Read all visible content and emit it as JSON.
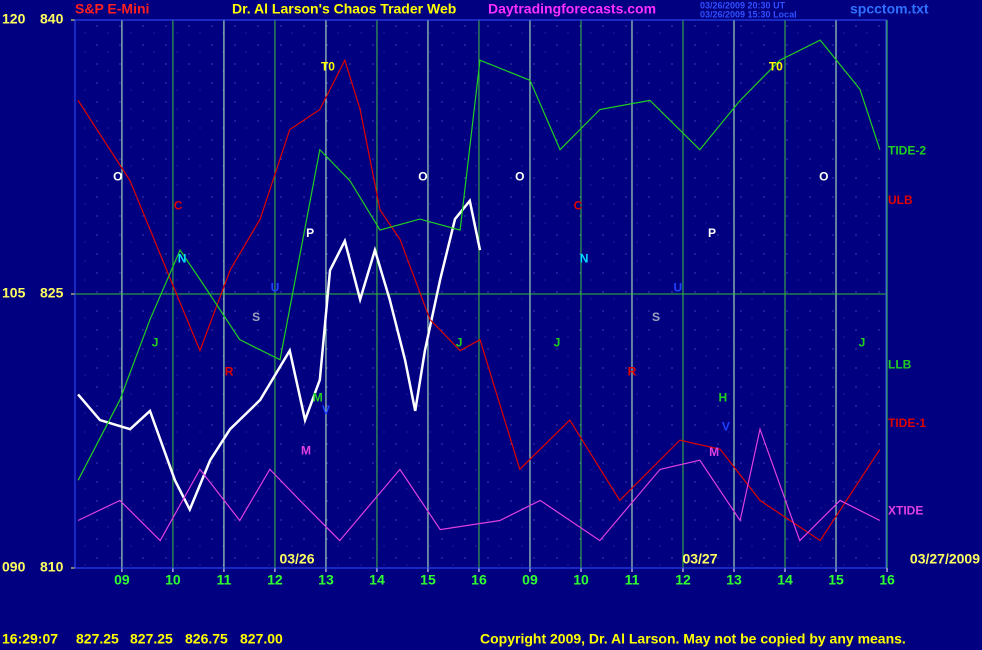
{
  "chart_data": {
    "type": "line",
    "title": "Dr. Al Larson's Chaos Trader Web",
    "symbol": "S&P E-Mini",
    "website": "Daytradingforecasts.com",
    "file": "spcctom.txt",
    "timestamps": [
      "03/26/2009 20:30 UT",
      "03/26/2009 15:30 Local"
    ],
    "xlim": [
      0.08,
      15.98
    ],
    "xticks": [
      {
        "value": 1,
        "label": "09"
      },
      {
        "value": 2,
        "label": "10"
      },
      {
        "value": 3,
        "label": "11"
      },
      {
        "value": 4,
        "label": "12"
      },
      {
        "value": 5,
        "label": "13"
      },
      {
        "value": 6,
        "label": "14"
      },
      {
        "value": 7,
        "label": "15"
      },
      {
        "value": 8,
        "label": "16"
      },
      {
        "value": 9,
        "label": "09"
      },
      {
        "value": 10,
        "label": "10"
      },
      {
        "value": 11,
        "label": "11"
      },
      {
        "value": 12,
        "label": "12"
      },
      {
        "value": 13,
        "label": "13"
      },
      {
        "value": 14,
        "label": "14"
      },
      {
        "value": 15,
        "label": "15"
      },
      {
        "value": 16,
        "label": "16"
      }
    ],
    "ylim": [
      810,
      840
    ],
    "yticks": [
      810,
      825,
      840
    ],
    "y2lim": [
      90,
      120
    ],
    "y2ticks": [
      {
        "value": 90,
        "label": "090"
      },
      105,
      120
    ],
    "grid": true,
    "date_labels": [
      "03/26",
      "03/27",
      "03/27/2009"
    ],
    "series": [
      {
        "name": "Price",
        "color": "#ffffff",
        "x": [
          0.14,
          0.57,
          1.16,
          1.55,
          2.04,
          2.33,
          2.73,
          3.12,
          3.71,
          4.29,
          4.59,
          4.88,
          5.08,
          5.37,
          5.67,
          5.96,
          6.25,
          6.55,
          6.75,
          6.94,
          7.24,
          7.53,
          7.82,
          8.02
        ],
        "values": [
          819.5,
          818.1,
          817.6,
          818.6,
          814.8,
          813.2,
          815.9,
          817.6,
          819.2,
          821.9,
          818.1,
          820.3,
          826.3,
          827.9,
          824.7,
          827.4,
          824.7,
          821.4,
          818.6,
          821.9,
          825.8,
          829.1,
          830.1,
          827.4
        ]
      },
      {
        "name": "ULB",
        "color": "#e00000",
        "x": [
          0.14,
          1.16,
          2.04,
          2.53,
          3.12,
          3.71,
          4.29,
          4.88,
          5.37,
          5.67,
          6.06,
          6.45,
          7.04,
          7.63,
          8.02,
          8.8,
          9.78,
          10.76,
          11.94,
          12.73,
          13.51,
          14.69,
          15.86
        ],
        "values": [
          835.6,
          831.2,
          825.2,
          821.9,
          826.3,
          829.1,
          834.0,
          835.1,
          837.8,
          835.1,
          829.6,
          828.0,
          823.6,
          821.9,
          822.5,
          815.4,
          818.1,
          813.7,
          817.0,
          816.5,
          813.7,
          811.5,
          816.5
        ]
      },
      {
        "name": "TIDE-2",
        "color": "#20d020",
        "x": [
          0.14,
          0.96,
          1.55,
          2.14,
          2.53,
          3.31,
          4.1,
          4.88,
          5.47,
          6.06,
          6.84,
          7.63,
          8.02,
          9.0,
          9.59,
          10.37,
          11.35,
          12.33,
          13.12,
          13.9,
          14.69,
          15.47,
          15.86
        ],
        "values": [
          814.8,
          819.2,
          823.6,
          827.4,
          825.8,
          822.5,
          821.4,
          832.9,
          831.2,
          828.5,
          829.1,
          828.5,
          837.8,
          836.7,
          832.9,
          835.1,
          835.6,
          832.9,
          835.6,
          837.8,
          838.9,
          836.2,
          832.9
        ]
      },
      {
        "name": "XTIDE",
        "color": "#e040e0",
        "x": [
          0.14,
          0.96,
          1.75,
          2.53,
          3.31,
          3.9,
          4.49,
          5.27,
          6.45,
          7.24,
          8.41,
          9.2,
          10.37,
          11.55,
          12.33,
          13.12,
          13.51,
          14.29,
          15.08,
          15.86
        ],
        "values": [
          812.6,
          813.7,
          811.5,
          815.4,
          812.6,
          815.4,
          813.7,
          811.5,
          815.4,
          812.1,
          812.6,
          813.7,
          811.5,
          815.4,
          815.9,
          812.6,
          817.6,
          811.5,
          813.7,
          812.6
        ]
      }
    ],
    "annotations": [
      {
        "text": "O",
        "x": 0.92,
        "y": 831.4,
        "color": "#ffffff"
      },
      {
        "text": "C",
        "x": 2.1,
        "y": 829.8,
        "color": "#e00000"
      },
      {
        "text": "N",
        "x": 2.18,
        "y": 826.9,
        "color": "#00e0ff"
      },
      {
        "text": "U",
        "x": 4.0,
        "y": 825.3,
        "color": "#2040ff"
      },
      {
        "text": "S",
        "x": 3.63,
        "y": 823.7,
        "color": "#a0a0c0"
      },
      {
        "text": "R",
        "x": 3.1,
        "y": 820.7,
        "color": "#e00000"
      },
      {
        "text": "T0",
        "x": 5.04,
        "y": 837.4,
        "color": "#ffff00"
      },
      {
        "text": "P",
        "x": 4.69,
        "y": 828.3,
        "color": "#ffffff"
      },
      {
        "text": "J",
        "x": 1.65,
        "y": 822.3,
        "color": "#20d020"
      },
      {
        "text": "M",
        "x": 4.84,
        "y": 819.3,
        "color": "#20d020"
      },
      {
        "text": "V",
        "x": 5.0,
        "y": 818.6,
        "color": "#2040ff"
      },
      {
        "text": "M",
        "x": 4.61,
        "y": 816.4,
        "color": "#e040e0"
      },
      {
        "text": "O",
        "x": 6.9,
        "y": 831.4,
        "color": "#ffffff"
      },
      {
        "text": "J",
        "x": 7.61,
        "y": 822.3,
        "color": "#20d020"
      },
      {
        "text": "O",
        "x": 8.8,
        "y": 831.4,
        "color": "#ffffff"
      },
      {
        "text": "C",
        "x": 9.94,
        "y": 829.8,
        "color": "#e00000"
      },
      {
        "text": "N",
        "x": 10.06,
        "y": 826.9,
        "color": "#00e0ff"
      },
      {
        "text": "J",
        "x": 9.53,
        "y": 822.3,
        "color": "#20d020"
      },
      {
        "text": "R",
        "x": 11.0,
        "y": 820.7,
        "color": "#e00000"
      },
      {
        "text": "S",
        "x": 11.47,
        "y": 823.7,
        "color": "#a0a0c0"
      },
      {
        "text": "U",
        "x": 11.9,
        "y": 825.3,
        "color": "#2040ff"
      },
      {
        "text": "P",
        "x": 12.57,
        "y": 828.3,
        "color": "#ffffff"
      },
      {
        "text": "H",
        "x": 12.78,
        "y": 819.3,
        "color": "#20d020"
      },
      {
        "text": "V",
        "x": 12.84,
        "y": 817.7,
        "color": "#2040ff"
      },
      {
        "text": "M",
        "x": 12.61,
        "y": 816.3,
        "color": "#e040e0"
      },
      {
        "text": "T0",
        "x": 13.82,
        "y": 837.4,
        "color": "#ffff00"
      },
      {
        "text": "O",
        "x": 14.76,
        "y": 831.4,
        "color": "#ffffff"
      },
      {
        "text": "J",
        "x": 15.51,
        "y": 822.3,
        "color": "#20d020"
      }
    ],
    "right_labels": [
      {
        "text": "TIDE-2",
        "y": 832.8,
        "color": "#20d020"
      },
      {
        "text": "ULB",
        "y": 830.1,
        "color": "#e00000"
      },
      {
        "text": "LLB",
        "y": 821.1,
        "color": "#20d020"
      },
      {
        "text": "TIDE-1",
        "y": 817.9,
        "color": "#e00000"
      },
      {
        "text": "XTIDE",
        "y": 813.1,
        "color": "#e040e0"
      }
    ],
    "status": {
      "time": "16:29:07",
      "open": "827.25",
      "high": "827.25",
      "low": "826.75",
      "close": "827.00"
    },
    "copyright": "Copyright 2009, Dr. Al Larson. May not be copied by any means."
  }
}
